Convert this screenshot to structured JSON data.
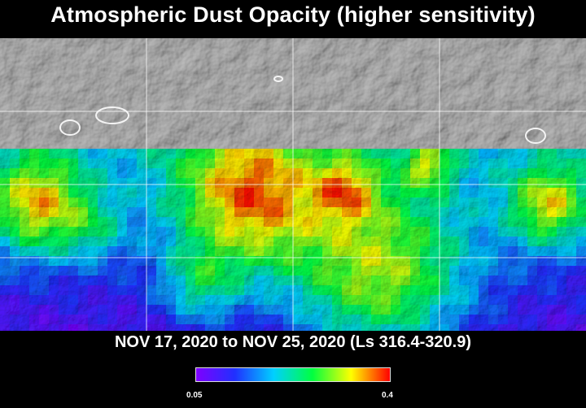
{
  "title": "Atmospheric Dust Opacity (higher sensitivity)",
  "date_range": "NOV 17, 2020 to NOV 25, 2020 (Ls 316.4-320.9)",
  "colorbar": {
    "min_label": "0.05",
    "max_label": "0.4",
    "colors": [
      "#7f00ff",
      "#2030ff",
      "#00d0ff",
      "#00ff40",
      "#ffff00",
      "#ff0000"
    ]
  },
  "map": {
    "grid_latitude_lines": 3,
    "grid_longitude_lines": 3,
    "base_color": "#bdbdbd"
  }
}
